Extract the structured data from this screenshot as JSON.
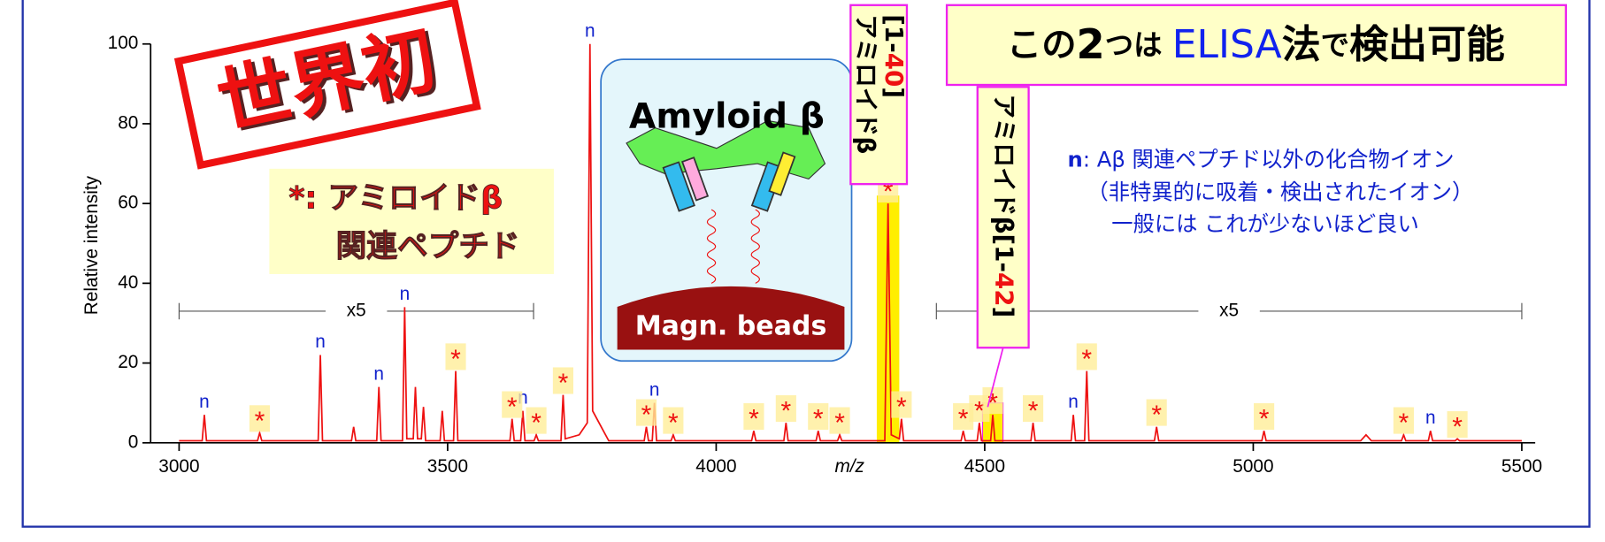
{
  "chart_data": {
    "type": "line",
    "xlabel": "m/z",
    "ylabel": "Relative intensity",
    "xlim": [
      2947,
      5525
    ],
    "ylim": [
      0,
      100
    ],
    "xticks": [
      3000,
      3500,
      4000,
      4500,
      5000,
      5500
    ],
    "yticks": [
      0,
      20,
      40,
      60,
      80,
      100
    ],
    "series": [
      {
        "color": "#ee1111",
        "x": [
          3000,
          3043,
          3047,
          3051,
          3146,
          3150,
          3154,
          3259,
          3263,
          3267,
          3321,
          3325,
          3329,
          3368,
          3372,
          3376,
          3416,
          3420,
          3424,
          3436,
          3440,
          3444,
          3451,
          3455,
          3459,
          3486,
          3490,
          3494,
          3511,
          3515,
          3519,
          3616,
          3620,
          3624,
          3636,
          3640,
          3644,
          3661,
          3665,
          3669,
          3711,
          3715,
          3719,
          3745,
          3760,
          3765,
          3770,
          3790,
          3800,
          3866,
          3870,
          3874,
          3881,
          3885,
          3889,
          3916,
          3920,
          3924,
          4066,
          4070,
          4074,
          4126,
          4130,
          4134,
          4186,
          4190,
          4194,
          4226,
          4230,
          4234,
          4314,
          4320,
          4326,
          4341,
          4345,
          4349,
          4456,
          4460,
          4464,
          4486,
          4490,
          4494,
          4511,
          4515,
          4519,
          4586,
          4590,
          4594,
          4661,
          4665,
          4669,
          4686,
          4690,
          4694,
          4816,
          4820,
          4824,
          5016,
          5020,
          5024,
          5200,
          5210,
          5220,
          5276,
          5280,
          5284,
          5326,
          5330,
          5334,
          5376,
          5380,
          5384,
          5500
        ],
        "values": [
          0.5,
          0.5,
          7,
          0.5,
          0.5,
          2.5,
          0.5,
          0.5,
          22,
          0.5,
          0.5,
          4,
          0.5,
          0.5,
          14,
          0.5,
          0.5,
          34,
          1,
          1,
          14,
          1,
          1,
          9,
          0.5,
          0.5,
          8,
          0.5,
          0.5,
          18,
          0.5,
          0.5,
          6,
          0.5,
          0.5,
          8,
          0.5,
          0.5,
          2,
          0.5,
          0.5,
          12,
          1,
          2,
          5,
          100,
          8,
          3,
          0.5,
          0.5,
          4,
          0.5,
          0.5,
          10,
          0.5,
          0.5,
          2,
          0.5,
          0.5,
          3,
          0.5,
          0.5,
          5,
          0.5,
          0.5,
          3,
          0.5,
          0.5,
          2,
          0.5,
          0.5,
          60,
          2,
          1,
          6,
          0.5,
          0.5,
          3,
          0.5,
          0.5,
          5,
          0.5,
          0.5,
          7,
          0.5,
          0.5,
          5,
          0.5,
          0.5,
          7,
          0.5,
          0.5,
          18,
          0.5,
          0.5,
          4,
          0.5,
          0.5,
          3,
          0.5,
          0.5,
          2,
          0.5,
          0.5,
          2,
          0.5,
          0.5,
          3,
          0.5,
          0.5,
          1,
          0.5,
          0.5
        ]
      }
    ],
    "peak_labels": [
      {
        "x": 3047,
        "y": 7,
        "label": "n"
      },
      {
        "x": 3263,
        "y": 22,
        "label": "n"
      },
      {
        "x": 3372,
        "y": 14,
        "label": "n"
      },
      {
        "x": 3420,
        "y": 34,
        "label": "n"
      },
      {
        "x": 3640,
        "y": 8,
        "label": "n"
      },
      {
        "x": 3765,
        "y": 100,
        "label": "n"
      },
      {
        "x": 3885,
        "y": 10,
        "label": "n"
      },
      {
        "x": 4665,
        "y": 7,
        "label": "n"
      },
      {
        "x": 5330,
        "y": 3,
        "label": "n"
      },
      {
        "x": 3150,
        "y": 2.5,
        "label": "*"
      },
      {
        "x": 3515,
        "y": 18,
        "label": "*"
      },
      {
        "x": 3620,
        "y": 6,
        "label": "*"
      },
      {
        "x": 3665,
        "y": 2,
        "label": "*"
      },
      {
        "x": 3715,
        "y": 12,
        "label": "*"
      },
      {
        "x": 3870,
        "y": 4,
        "label": "*"
      },
      {
        "x": 3920,
        "y": 2,
        "label": "*"
      },
      {
        "x": 4070,
        "y": 3,
        "label": "*"
      },
      {
        "x": 4130,
        "y": 5,
        "label": "*"
      },
      {
        "x": 4190,
        "y": 3,
        "label": "*"
      },
      {
        "x": 4230,
        "y": 2,
        "label": "*"
      },
      {
        "x": 4320,
        "y": 60,
        "label": "*"
      },
      {
        "x": 4345,
        "y": 6,
        "label": "*"
      },
      {
        "x": 4460,
        "y": 3,
        "label": "*"
      },
      {
        "x": 4490,
        "y": 5,
        "label": "*"
      },
      {
        "x": 4515,
        "y": 7,
        "label": "*"
      },
      {
        "x": 4590,
        "y": 5,
        "label": "*"
      },
      {
        "x": 4690,
        "y": 18,
        "label": "*"
      },
      {
        "x": 4820,
        "y": 4,
        "label": "*"
      },
      {
        "x": 5020,
        "y": 3,
        "label": "*"
      },
      {
        "x": 5280,
        "y": 2,
        "label": "*"
      },
      {
        "x": 5380,
        "y": 1,
        "label": "*"
      }
    ],
    "magnified_ranges": [
      {
        "from": 3000,
        "to": 3660,
        "y": 33,
        "label": "x5"
      },
      {
        "from": 4410,
        "to": 5500,
        "y": 33,
        "label": "x5"
      }
    ],
    "stamp": "世界初",
    "legend_box": [
      "*: アミロイドβ",
      "関連ペプチド"
    ],
    "diagram": {
      "antibody": "Amyloid β",
      "beads": "Magn. beads"
    },
    "peak_box_1": [
      "アミロイドβ",
      "[1-",
      "40",
      "]"
    ],
    "peak_box_2": [
      "アミロイドβ[1-",
      "42",
      "]"
    ],
    "callout": [
      "この",
      "2",
      "つは ",
      "ELISA",
      "法",
      "で",
      "検出可能"
    ],
    "note": {
      "line1": [
        "n",
        ": Aβ 関連ペプチド以外の化合物イオン"
      ],
      "line2": "（非特異的に吸着・検出されたイオン）",
      "line3": "一般には これが少ないほど良い"
    }
  }
}
